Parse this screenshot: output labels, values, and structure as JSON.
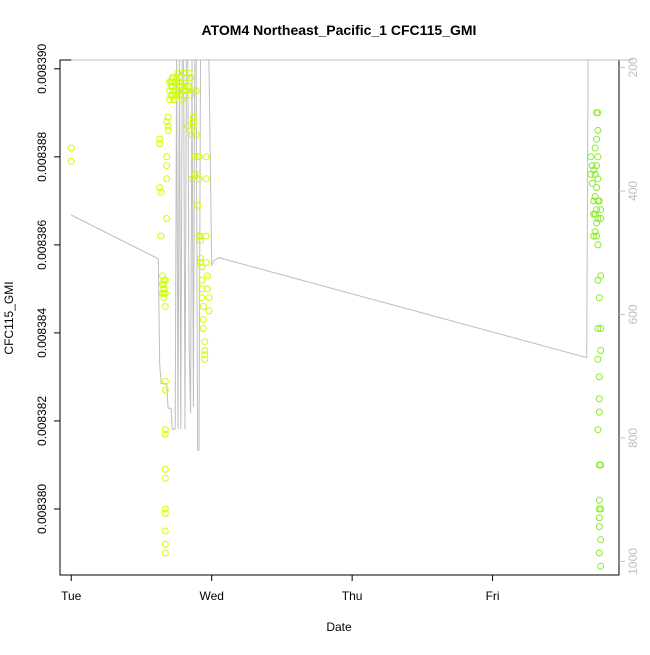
{
  "chart_data": {
    "type": "scatter",
    "title": "ATOM4 Northeast_Pacific_1 CFC115_GMI",
    "xlabel": "Date",
    "ylabel": "CFC115_GMI",
    "x_ticks": [
      "Tue",
      "Wed",
      "Thu",
      "Fri"
    ],
    "x_range_days": [
      -0.08,
      3.9
    ],
    "y_ticks": [
      "0.008380",
      "0.008382",
      "0.008384",
      "0.008386",
      "0.008388",
      "0.008390"
    ],
    "y_range": [
      0.0083785,
      0.0083902
    ],
    "right_axis": {
      "ticks": [
        "200",
        "400",
        "600",
        "800",
        "1000"
      ],
      "range": [
        1022,
        188
      ],
      "color": "#bebebe"
    },
    "colors": {
      "early": "#ccff00",
      "late": "#88ee22",
      "line": "#bebebe"
    },
    "series": [
      {
        "points_x": [
          0.0,
          0.0,
          0.63,
          0.63,
          0.63,
          0.64,
          0.64,
          0.65,
          0.65,
          0.65,
          0.66,
          0.66,
          0.66,
          0.66,
          0.66,
          0.66,
          0.66,
          0.67,
          0.67,
          0.67,
          0.67,
          0.67,
          0.67,
          0.67,
          0.67,
          0.67,
          0.67,
          0.67,
          0.67,
          0.67,
          0.67,
          0.68,
          0.68,
          0.68,
          0.68,
          0.68,
          0.69,
          0.69,
          0.69,
          0.7,
          0.7,
          0.7,
          0.71,
          0.71,
          0.71,
          0.72,
          0.72,
          0.72,
          0.72,
          0.73,
          0.73,
          0.73,
          0.74,
          0.74,
          0.75,
          0.75,
          0.76,
          0.76,
          0.77,
          0.77,
          0.78,
          0.78,
          0.79,
          0.79,
          0.8,
          0.8,
          0.81,
          0.81,
          0.82,
          0.82,
          0.83,
          0.83,
          0.84,
          0.84,
          0.85,
          0.85,
          0.86,
          0.86,
          0.87,
          0.87,
          0.87,
          0.87,
          0.88,
          0.88,
          0.89,
          0.89,
          0.9,
          0.9,
          0.9,
          0.91,
          0.91,
          0.91,
          0.92,
          0.92,
          0.92,
          0.92,
          0.93,
          0.93,
          0.93,
          0.93,
          0.94,
          0.94,
          0.94,
          0.95,
          0.95,
          0.95,
          0.95,
          0.96,
          0.96,
          0.96,
          0.96,
          0.97,
          0.97,
          0.98,
          0.98
        ],
        "points_y": [
          0.0083882,
          0.0083879,
          0.0083884,
          0.0083883,
          0.0083873,
          0.0083872,
          0.0083862,
          0.0083853,
          0.0083849,
          0.0083851,
          0.008385,
          0.0083848,
          0.0083851,
          0.008385,
          0.0083849,
          0.008385,
          0.0083852,
          0.0083852,
          0.0083849,
          0.0083846,
          0.0083829,
          0.0083827,
          0.0083818,
          0.0083817,
          0.0083809,
          0.0083807,
          0.00838,
          0.0083799,
          0.0083795,
          0.0083792,
          0.008379,
          0.0083866,
          0.0083875,
          0.0083878,
          0.008388,
          0.0083888,
          0.0083889,
          0.0083886,
          0.0083887,
          0.0083893,
          0.0083895,
          0.0083897,
          0.0083897,
          0.0083896,
          0.0083894,
          0.0083898,
          0.0083897,
          0.0083896,
          0.0083894,
          0.0083898,
          0.0083895,
          0.0083893,
          0.0083897,
          0.0083894,
          0.0083898,
          0.0083896,
          0.0083899,
          0.0083895,
          0.0083897,
          0.0083894,
          0.0083898,
          0.0083895,
          0.0083896,
          0.0083893,
          0.0083899,
          0.0083895,
          0.0083896,
          0.0083894,
          0.0083898,
          0.0083895,
          0.0083896,
          0.0083887,
          0.0083899,
          0.0083896,
          0.0083898,
          0.0083894,
          0.0083885,
          0.0083875,
          0.0083895,
          0.0083889,
          0.0083888,
          0.0083887,
          0.008388,
          0.0083876,
          0.0083895,
          0.0083885,
          0.008388,
          0.0083876,
          0.0083869,
          0.008388,
          0.0083875,
          0.0083862,
          0.0083862,
          0.0083861,
          0.0083857,
          0.0083856,
          0.0083855,
          0.0083852,
          0.008385,
          0.0083848,
          0.0083846,
          0.0083843,
          0.0083841,
          0.0083838,
          0.0083836,
          0.0083835,
          0.0083834,
          0.008388,
          0.0083875,
          0.0083862,
          0.0083856,
          0.0083853,
          0.008385,
          0.0083848,
          0.0083845
        ]
      },
      {
        "points_x": [
          3.7,
          3.7,
          3.71,
          3.71,
          3.72,
          3.72,
          3.72,
          3.72,
          3.73,
          3.73,
          3.73,
          3.73,
          3.73,
          3.74,
          3.74,
          3.74,
          3.74,
          3.74,
          3.74,
          3.74,
          3.75,
          3.75,
          3.75,
          3.75,
          3.75,
          3.75,
          3.75,
          3.75,
          3.75,
          3.75,
          3.75,
          3.76,
          3.76,
          3.76,
          3.76,
          3.76,
          3.76,
          3.76,
          3.76,
          3.76,
          3.76,
          3.76,
          3.77,
          3.77,
          3.77,
          3.77,
          3.77,
          3.77,
          3.77,
          3.77,
          3.77
        ],
        "points_y": [
          0.008388,
          0.0083876,
          0.0083878,
          0.0083874,
          0.0083877,
          0.008387,
          0.0083867,
          0.0083862,
          0.0083882,
          0.0083876,
          0.0083871,
          0.0083867,
          0.0083863,
          0.008389,
          0.0083884,
          0.0083878,
          0.0083873,
          0.0083868,
          0.0083865,
          0.0083862,
          0.008389,
          0.0083886,
          0.008388,
          0.0083875,
          0.008387,
          0.0083866,
          0.008386,
          0.0083852,
          0.0083841,
          0.0083834,
          0.0083818,
          0.0083825,
          0.0083822,
          0.008381,
          0.0083802,
          0.0083798,
          0.00838,
          0.0083796,
          0.008379,
          0.008383,
          0.0083848,
          0.008387,
          0.0083836,
          0.0083853,
          0.0083866,
          0.0083868,
          0.0083841,
          0.008381,
          0.00838,
          0.0083793,
          0.0083787
        ]
      }
    ],
    "line_series": {
      "axis": "right",
      "x": [
        0.0,
        0.62,
        0.63,
        0.64,
        0.65,
        0.66,
        0.67,
        0.68,
        0.69,
        0.7,
        0.71,
        0.72,
        0.73,
        0.74,
        0.75,
        0.76,
        0.77,
        0.78,
        0.79,
        0.8,
        0.81,
        0.82,
        0.83,
        0.84,
        0.85,
        0.86,
        0.87,
        0.88,
        0.89,
        0.9,
        0.91,
        0.92,
        0.93,
        0.94,
        0.95,
        0.96,
        0.97,
        0.98,
        1.0,
        1.02,
        1.05,
        3.67,
        3.68,
        3.69,
        3.7,
        3.71,
        3.72,
        3.73,
        3.74,
        3.75,
        3.76,
        3.77,
        3.77,
        3.77,
        3.77,
        3.78,
        3.78,
        3.78,
        3.79,
        3.79,
        3.8,
        3.8,
        3.81,
        3.81,
        3.82,
        3.82,
        3.83,
        3.83,
        3.84,
        3.84,
        3.85,
        3.85,
        3.86,
        3.86,
        3.87,
        3.87,
        3.88,
        3.88,
        3.89,
        3.9,
        3.9,
        3.91,
        3.91,
        3.91,
        3.92,
        3.92,
        3.93,
        3.93,
        3.94,
        3.95,
        3.96,
        3.97,
        3.98,
        3.98,
        3.99,
        4.0,
        3.9,
        3.4,
        2.4,
        1.4,
        0.4,
        0.0
      ],
      "y": [
        439,
        510,
        680,
        712,
        712,
        712,
        712,
        712,
        752,
        752,
        752,
        786,
        786,
        786,
        188,
        786,
        188,
        786,
        188,
        188,
        786,
        188,
        188,
        660,
        760,
        188,
        750,
        188,
        188,
        820,
        820,
        188,
        188,
        188,
        188,
        188,
        188,
        188,
        520,
        512,
        508,
        670,
        188,
        188,
        188,
        188,
        188,
        188,
        188,
        188,
        188,
        188,
        188,
        188,
        188,
        188,
        188,
        188,
        188,
        188,
        188,
        188,
        188,
        188,
        188,
        188,
        188,
        188,
        188,
        188,
        188,
        188,
        188,
        188,
        188,
        188,
        188,
        188,
        188,
        188,
        188,
        188,
        188,
        188,
        188,
        188,
        188,
        188,
        188,
        188,
        188,
        188,
        188,
        188,
        188,
        188,
        188,
        188,
        188,
        188,
        188,
        188
      ]
    }
  }
}
